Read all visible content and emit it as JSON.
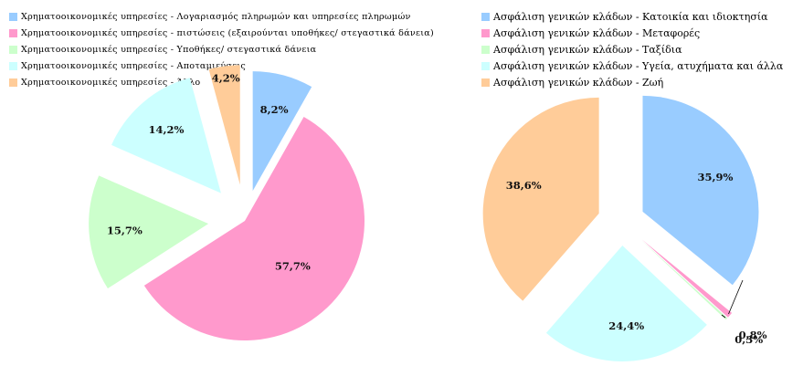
{
  "chart_data": [
    {
      "type": "pie",
      "slices": [
        {
          "name": "Χρηματοοικονομικές υπηρεσίες - Λογαριασμός πληρωμών και υπηρεσίες πληρωμών",
          "value": 8.2,
          "label": "8,2%",
          "color": "#99CCFF"
        },
        {
          "name": "Χρηματοοικονομικές υπηρεσίες - πιστώσεις (εξαιρούνται υποθήκες/ στεγαστικά δάνεια)",
          "value": 57.7,
          "label": "57,7%",
          "color": "#FF99CC"
        },
        {
          "name": "Χρηματοοικονομικές υπηρεσίες - Υποθήκες/ στεγαστικά δάνεια",
          "value": 15.7,
          "label": "15,7%",
          "color": "#CCFFCC"
        },
        {
          "name": "Χρηματοοικονομικές υπηρεσίες - Αποταμιεύσεις",
          "value": 14.2,
          "label": "14,2%",
          "color": "#CCFFFF"
        },
        {
          "name": "Χρηματοοικονομικές υπηρεσίες - Άλλο",
          "value": 4.2,
          "label": "4,2%",
          "color": "#FFCC99"
        }
      ],
      "legend": "top-left",
      "exploded": true
    },
    {
      "type": "pie",
      "slices": [
        {
          "name": "Ασφάλιση γενικών κλάδων - Κατοικία και ιδιοκτησία",
          "value": 35.9,
          "label": "35,9%",
          "color": "#99CCFF"
        },
        {
          "name": "Ασφάλιση γενικών κλάδων - Μεταφορές",
          "value": 0.8,
          "label": "0,8%",
          "color": "#FF99CC"
        },
        {
          "name": "Ασφάλιση γενικών κλάδων - Ταξίδια",
          "value": 0.3,
          "label": "0,3%",
          "color": "#CCFFCC"
        },
        {
          "name": "Ασφάλιση γενικών κλάδων - Υγεία, ατυχήματα και άλλα",
          "value": 24.4,
          "label": "24,4%",
          "color": "#CCFFFF"
        },
        {
          "name": "Ασφάλιση γενικών κλάδων - Ζωή",
          "value": 38.6,
          "label": "38,6%",
          "color": "#FFCC99"
        }
      ],
      "legend": "top-right",
      "exploded": true
    }
  ]
}
